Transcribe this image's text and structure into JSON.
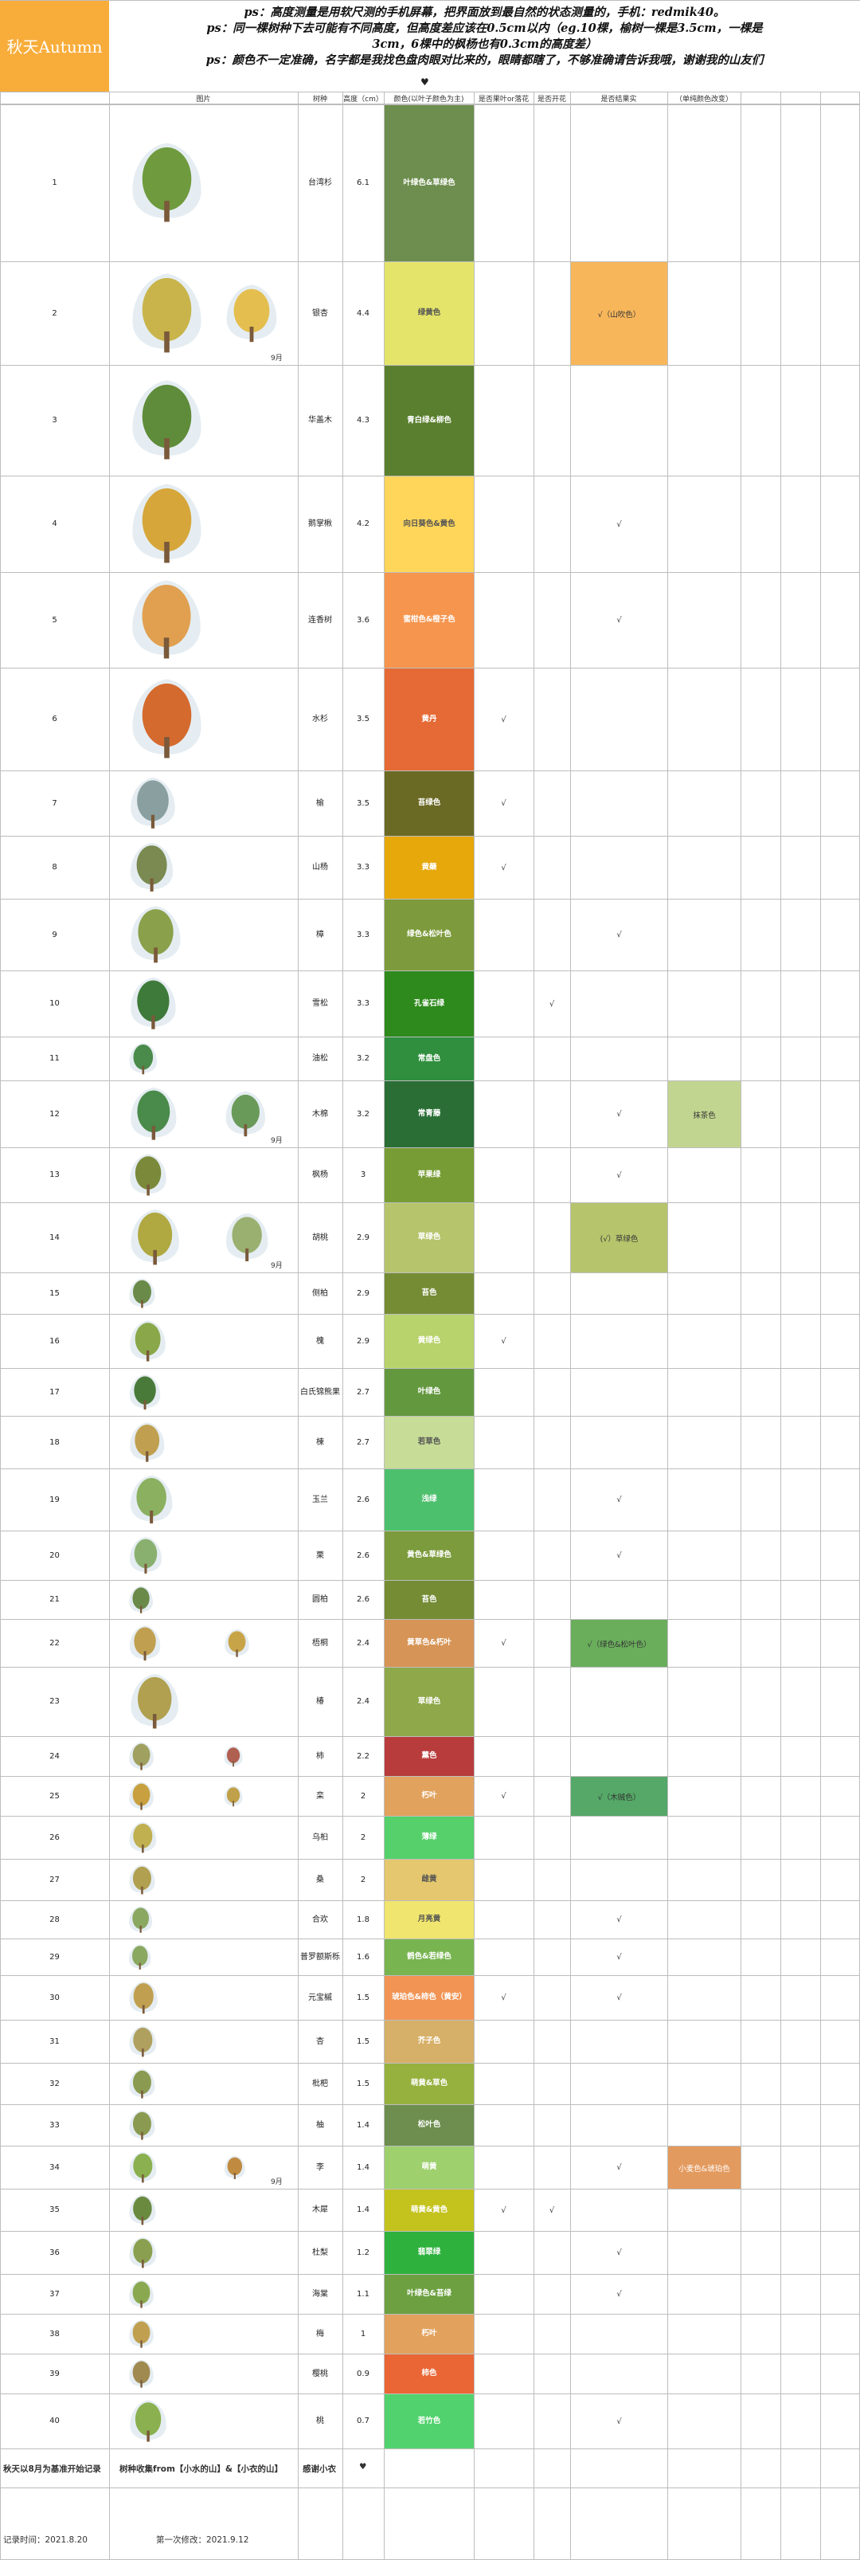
{
  "title": "秋天Autumn",
  "notes": [
    "ps：高度测量是用软尺测的手机屏幕，把界面放到最自然的状态测量的，手机：redmik40。",
    "ps：同一棵树种下去可能有不同高度，但高度差应该在0.5cm以内（eg.10棵，榆树一棵是3.5cm，一棵是",
    "3cm，6棵中的枫杨也有0.3cm的高度差）",
    "ps：颜色不一定准确，名字都是我找色盘肉眼对比来的，眼睛都瞎了，不够准确请告诉我哦，谢谢我的山友们"
  ],
  "heart": "♥",
  "headers": {
    "picture": "图片",
    "species": "树种",
    "height": "高度（cm）",
    "color": "颜色(以叶子颜色为主)",
    "fruit": "是否果叶or落花",
    "flower": "是否开花",
    "result": "是否结果实",
    "note": "（单纯颜色改变）"
  },
  "rows": [
    {
      "no": "1",
      "name": "台湾杉",
      "height": "6.1",
      "color_label": "叶绿色&草绿色",
      "color": "#6d8e4e",
      "fruit": "",
      "flower": "",
      "result": "",
      "result_bg": "",
      "extra": "",
      "extra_bg": "",
      "pic": "#6f9a3e",
      "pic2": "",
      "month": ""
    },
    {
      "no": "2",
      "name": "银杏",
      "height": "4.4",
      "color_label": "绿黄色",
      "color": "#e4e46a",
      "fruit": "",
      "flower": "",
      "result": "√（山吹色）",
      "result_bg": "#f8b65b",
      "extra": "",
      "extra_bg": "",
      "pic": "#c8b44a",
      "pic2": "#e4be4e",
      "month": "9月"
    },
    {
      "no": "3",
      "name": "华盖木",
      "height": "4.3",
      "color_label": "青白绿&柳色",
      "color": "#5a7f2e",
      "fruit": "",
      "flower": "",
      "result": "",
      "result_bg": "",
      "extra": "",
      "extra_bg": "",
      "pic": "#5f8c3a",
      "pic2": "",
      "month": ""
    },
    {
      "no": "4",
      "name": "鹅掌楸",
      "height": "4.2",
      "color_label": "向日葵色&黄色",
      "color": "#ffd65a",
      "fruit": "",
      "flower": "",
      "result": "√",
      "result_bg": "",
      "extra": "",
      "extra_bg": "",
      "pic": "#d6a63a",
      "pic2": "",
      "month": ""
    },
    {
      "no": "5",
      "name": "连香树",
      "height": "3.6",
      "color_label": "蜜柑色&橙子色",
      "color": "#f6954e",
      "fruit": "",
      "flower": "",
      "result": "√",
      "result_bg": "",
      "extra": "",
      "extra_bg": "",
      "pic": "#e0a050",
      "pic2": "",
      "month": ""
    },
    {
      "no": "6",
      "name": "水杉",
      "height": "3.5",
      "color_label": "黄丹",
      "color": "#e66a35",
      "fruit": "√",
      "flower": "",
      "result": "",
      "result_bg": "",
      "extra": "",
      "extra_bg": "",
      "pic": "#d46a2e",
      "pic2": "",
      "month": ""
    },
    {
      "no": "7",
      "name": "榆",
      "height": "3.5",
      "color_label": "苔绿色",
      "color": "#6b6a25",
      "fruit": "√",
      "flower": "",
      "result": "",
      "result_bg": "",
      "extra": "",
      "extra_bg": "",
      "pic": "#8aa0a0",
      "pic2": "",
      "month": ""
    },
    {
      "no": "8",
      "name": "山杨",
      "height": "3.3",
      "color_label": "黄蘗",
      "color": "#e6a80a",
      "fruit": "√",
      "flower": "",
      "result": "",
      "result_bg": "",
      "extra": "",
      "extra_bg": "",
      "pic": "#7a8a50",
      "pic2": "",
      "month": ""
    },
    {
      "no": "9",
      "name": "樟",
      "height": "3.3",
      "color_label": "绿色&松叶色",
      "color": "#7d9b3c",
      "fruit": "",
      "flower": "",
      "result": "√",
      "result_bg": "",
      "extra": "",
      "extra_bg": "",
      "pic": "#8aa04a",
      "pic2": "",
      "month": ""
    },
    {
      "no": "10",
      "name": "雪松",
      "height": "3.3",
      "color_label": "孔雀石绿",
      "color": "#2e8a1c",
      "fruit": "",
      "flower": "√",
      "result": "",
      "result_bg": "",
      "extra": "",
      "extra_bg": "",
      "pic": "#3e7a3a",
      "pic2": "",
      "month": ""
    },
    {
      "no": "11",
      "name": "油松",
      "height": "3.2",
      "color_label": "常盘色",
      "color": "#2f8f3f",
      "fruit": "",
      "flower": "",
      "result": "",
      "result_bg": "",
      "extra": "",
      "extra_bg": "",
      "pic": "#4a8a4a",
      "pic2": "",
      "month": ""
    },
    {
      "no": "12",
      "name": "木棉",
      "height": "3.2",
      "color_label": "常青藤",
      "color": "#2a6e36",
      "fruit": "",
      "flower": "",
      "result": "√",
      "result_bg": "",
      "extra": "抹茶色",
      "extra_bg": "#c2d590",
      "pic": "#4a8a4a",
      "pic2": "#6a9a5a",
      "month": "9月"
    },
    {
      "no": "13",
      "name": "枫杨",
      "height": "3",
      "color_label": "苹果绿",
      "color": "#779c35",
      "fruit": "",
      "flower": "",
      "result": "√",
      "result_bg": "",
      "extra": "",
      "extra_bg": "",
      "pic": "#7a8a3a",
      "pic2": "",
      "month": ""
    },
    {
      "no": "14",
      "name": "胡桃",
      "height": "2.9",
      "color_label": "草绿色",
      "color": "#b6c46c",
      "fruit": "",
      "flower": "",
      "result": "(√）草绿色",
      "result_bg": "#b6c46c",
      "extra": "",
      "extra_bg": "",
      "pic": "#b0a840",
      "pic2": "#9ab070",
      "month": "9月"
    },
    {
      "no": "15",
      "name": "侧柏",
      "height": "2.9",
      "color_label": "苔色",
      "color": "#758c35",
      "fruit": "",
      "flower": "",
      "result": "",
      "result_bg": "",
      "extra": "",
      "extra_bg": "",
      "pic": "#6a8a4a",
      "pic2": "",
      "month": ""
    },
    {
      "no": "16",
      "name": "槐",
      "height": "2.9",
      "color_label": "黄绿色",
      "color": "#b8d36b",
      "fruit": "√",
      "flower": "",
      "result": "",
      "result_bg": "",
      "extra": "",
      "extra_bg": "",
      "pic": "#8aa84a",
      "pic2": "",
      "month": ""
    },
    {
      "no": "17",
      "name": "白氏锦熊果",
      "height": "2.7",
      "color_label": "叶绿色",
      "color": "#64983f",
      "fruit": "",
      "flower": "",
      "result": "",
      "result_bg": "",
      "extra": "",
      "extra_bg": "",
      "pic": "#4a7a3a",
      "pic2": "",
      "month": ""
    },
    {
      "no": "18",
      "name": "楝",
      "height": "2.7",
      "color_label": "若草色",
      "color": "#c7dc97",
      "fruit": "",
      "flower": "",
      "result": "",
      "result_bg": "",
      "extra": "",
      "extra_bg": "",
      "pic": "#c0a050",
      "pic2": "",
      "month": ""
    },
    {
      "no": "19",
      "name": "玉兰",
      "height": "2.6",
      "color_label": "浅绿",
      "color": "#4dc06e",
      "fruit": "",
      "flower": "",
      "result": "√",
      "result_bg": "",
      "extra": "",
      "extra_bg": "",
      "pic": "#8ab060",
      "pic2": "",
      "month": ""
    },
    {
      "no": "20",
      "name": "栗",
      "height": "2.6",
      "color_label": "黄色&草绿色",
      "color": "#7b9b3c",
      "fruit": "",
      "flower": "",
      "result": "√",
      "result_bg": "",
      "extra": "",
      "extra_bg": "",
      "pic": "#8ab070",
      "pic2": "",
      "month": ""
    },
    {
      "no": "21",
      "name": "圆柏",
      "height": "2.6",
      "color_label": "苔色",
      "color": "#758c35",
      "fruit": "",
      "flower": "",
      "result": "",
      "result_bg": "",
      "extra": "",
      "extra_bg": "",
      "pic": "#6a8a4a",
      "pic2": "",
      "month": ""
    },
    {
      "no": "22",
      "name": "梧桐",
      "height": "2.4",
      "color_label": "黄草色&朽叶",
      "color": "#d69456",
      "fruit": "√",
      "flower": "",
      "result": "√（绿色&松叶色）",
      "result_bg": "#6aae5c",
      "extra": "",
      "extra_bg": "",
      "pic": "#c0a050",
      "pic2": "#c8a448",
      "month": ""
    },
    {
      "no": "23",
      "name": "椿",
      "height": "2.4",
      "color_label": "草绿色",
      "color": "#8fa84a",
      "fruit": "",
      "flower": "",
      "result": "",
      "result_bg": "",
      "extra": "",
      "extra_bg": "",
      "pic": "#b0a050",
      "pic2": "",
      "month": ""
    },
    {
      "no": "24",
      "name": "柿",
      "height": "2.2",
      "color_label": "薰色",
      "color": "#b83c3c",
      "fruit": "",
      "flower": "",
      "result": "",
      "result_bg": "",
      "extra": "",
      "extra_bg": "",
      "pic": "#a0a060",
      "pic2": "#b06050",
      "month": ""
    },
    {
      "no": "25",
      "name": "栾",
      "height": "2",
      "color_label": "朽叶",
      "color": "#e1a25e",
      "fruit": "√",
      "flower": "",
      "result": "√（木贼色）",
      "result_bg": "#55a867",
      "extra": "",
      "extra_bg": "",
      "pic": "#c8a040",
      "pic2": "#c0a048",
      "month": ""
    },
    {
      "no": "26",
      "name": "乌桕",
      "height": "2",
      "color_label": "薄绿",
      "color": "#56d06a",
      "fruit": "",
      "flower": "",
      "result": "",
      "result_bg": "",
      "extra": "",
      "extra_bg": "",
      "pic": "#c0b050",
      "pic2": "",
      "month": ""
    },
    {
      "no": "27",
      "name": "桑",
      "height": "2",
      "color_label": "雌黄",
      "color": "#e4c76e",
      "fruit": "",
      "flower": "",
      "result": "",
      "result_bg": "",
      "extra": "",
      "extra_bg": "",
      "pic": "#b0a050",
      "pic2": "",
      "month": ""
    },
    {
      "no": "28",
      "name": "合欢",
      "height": "1.8",
      "color_label": "月亮黄",
      "color": "#f0e56e",
      "fruit": "",
      "flower": "",
      "result": "√",
      "result_bg": "",
      "extra": "",
      "extra_bg": "",
      "pic": "#8aa860",
      "pic2": "",
      "month": ""
    },
    {
      "no": "29",
      "name": "普罗额斯栎",
      "height": "1.6",
      "color_label": "鹤色&若绿色",
      "color": "#78b450",
      "fruit": "",
      "flower": "",
      "result": "√",
      "result_bg": "",
      "extra": "",
      "extra_bg": "",
      "pic": "#8aa860",
      "pic2": "",
      "month": ""
    },
    {
      "no": "30",
      "name": "元宝槭",
      "height": "1.5",
      "color_label": "琥珀色&柿色（黄安）",
      "color": "#f19454",
      "fruit": "√",
      "flower": "",
      "result": "√",
      "result_bg": "",
      "extra": "",
      "extra_bg": "",
      "pic": "#c0a050",
      "pic2": "",
      "month": ""
    },
    {
      "no": "31",
      "name": "杏",
      "height": "1.5",
      "color_label": "芥子色",
      "color": "#d6b068",
      "fruit": "",
      "flower": "",
      "result": "",
      "result_bg": "",
      "extra": "",
      "extra_bg": "",
      "pic": "#b0a060",
      "pic2": "",
      "month": ""
    },
    {
      "no": "32",
      "name": "枇杷",
      "height": "1.5",
      "color_label": "萌黄&草色",
      "color": "#96b13e",
      "fruit": "",
      "flower": "",
      "result": "",
      "result_bg": "",
      "extra": "",
      "extra_bg": "",
      "pic": "#8a9a50",
      "pic2": "",
      "month": ""
    },
    {
      "no": "33",
      "name": "柚",
      "height": "1.4",
      "color_label": "松叶色",
      "color": "#6d8e4e",
      "fruit": "",
      "flower": "",
      "result": "",
      "result_bg": "",
      "extra": "",
      "extra_bg": "",
      "pic": "#8a9a50",
      "pic2": "",
      "month": ""
    },
    {
      "no": "34",
      "name": "李",
      "height": "1.4",
      "color_label": "萌黄",
      "color": "#9ed06e",
      "fruit": "",
      "flower": "",
      "result": "√",
      "result_bg": "",
      "extra": "小麦色&琥珀色",
      "extra_bg": "#e39a5e",
      "pic": "#8ab050",
      "pic2": "#c08a40",
      "month": "9月"
    },
    {
      "no": "35",
      "name": "木犀",
      "height": "1.4",
      "color_label": "萌黄&黄色",
      "color": "#c4c31e",
      "fruit": "√",
      "flower": "√",
      "result": "",
      "result_bg": "",
      "extra": "",
      "extra_bg": "",
      "pic": "#6a8a40",
      "pic2": "",
      "month": ""
    },
    {
      "no": "36",
      "name": "杜梨",
      "height": "1.2",
      "color_label": "翡翠绿",
      "color": "#2fb13e",
      "fruit": "",
      "flower": "",
      "result": "√",
      "result_bg": "",
      "extra": "",
      "extra_bg": "",
      "pic": "#8aa050",
      "pic2": "",
      "month": ""
    },
    {
      "no": "37",
      "name": "海棠",
      "height": "1.1",
      "color_label": "叶绿色&苔绿",
      "color": "#6ca040",
      "fruit": "",
      "flower": "",
      "result": "√",
      "result_bg": "",
      "extra": "",
      "extra_bg": "",
      "pic": "#8aa850",
      "pic2": "",
      "month": ""
    },
    {
      "no": "38",
      "name": "梅",
      "height": "1",
      "color_label": "朽叶",
      "color": "#e2a25e",
      "fruit": "",
      "flower": "",
      "result": "",
      "result_bg": "",
      "extra": "",
      "extra_bg": "",
      "pic": "#c0a050",
      "pic2": "",
      "month": ""
    },
    {
      "no": "39",
      "name": "樱桃",
      "height": "0.9",
      "color_label": "柿色",
      "color": "#ea6635",
      "fruit": "",
      "flower": "",
      "result": "",
      "result_bg": "",
      "extra": "",
      "extra_bg": "",
      "pic": "#a08a50",
      "pic2": "",
      "month": ""
    },
    {
      "no": "40",
      "name": "桃",
      "height": "0.7",
      "color_label": "若竹色",
      "color": "#52d26e",
      "fruit": "",
      "flower": "",
      "result": "√",
      "result_bg": "",
      "extra": "",
      "extra_bg": "",
      "pic": "#8ab050",
      "pic2": "",
      "month": ""
    }
  ],
  "footer": {
    "left": "秋天以8月为基准开始记录",
    "middle": "树种收集from【小水的山】&【小衣的山】",
    "thanks": "感谢小衣",
    "heart": "♥",
    "record_time": "记录时间：2021.8.20",
    "first_edit": "第一次修改：2021.9.12"
  }
}
